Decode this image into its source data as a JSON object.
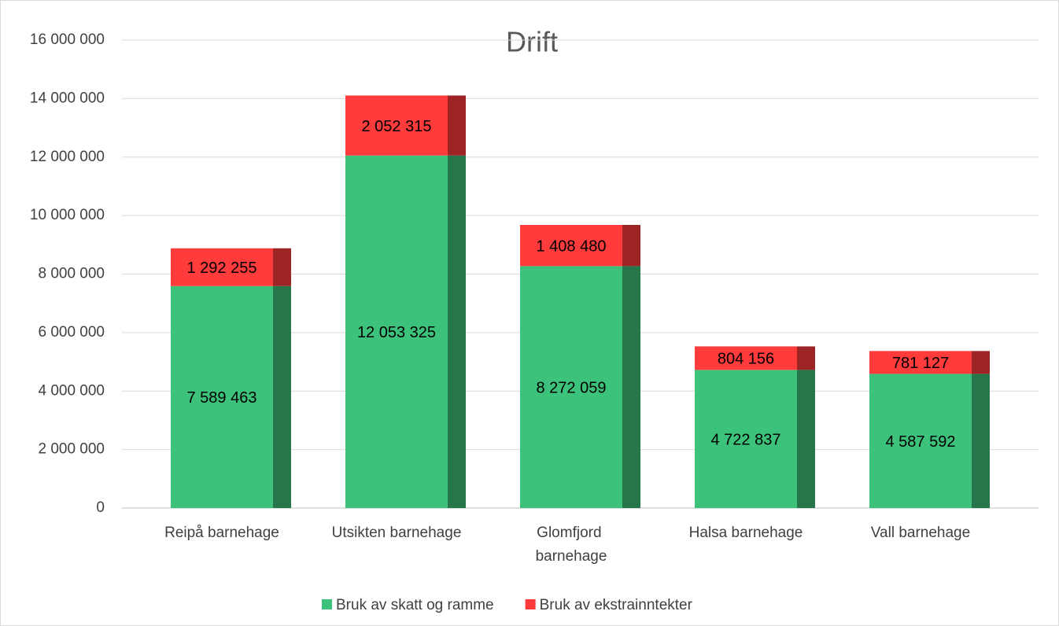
{
  "chart_data": {
    "type": "stacked_bar",
    "title": "Drift",
    "categories": [
      "Reipå barnehage",
      "Utsikten barnehage",
      "Glomfjord barnehage",
      "Halsa barnehage",
      "Vall barnehage"
    ],
    "series": [
      {
        "name": "Bruk av skatt og ramme",
        "color": "#3cc27a",
        "values": [
          7589463,
          12053325,
          8272059,
          4722837,
          4587592
        ],
        "value_labels": [
          "7 589 463",
          "12 053 325",
          "8 272 059",
          "4 722 837",
          "4 587 592"
        ]
      },
      {
        "name": "Bruk av ekstrainntekter",
        "color": "#ff3b3b",
        "values": [
          1292255,
          2052315,
          1408480,
          804156,
          781127
        ],
        "value_labels": [
          "1 292 255",
          "2 052 315",
          "1 408 480",
          "804 156",
          "781 127"
        ]
      }
    ],
    "ylim": [
      0,
      16000000
    ],
    "yticks": [
      0,
      {
        "value": 2000000,
        "label": "2 000 000"
      },
      {
        "value": 4000000,
        "label": "4 000 000"
      },
      {
        "value": 6000000,
        "label": "6 000 000"
      },
      {
        "value": 8000000,
        "label": "8 000 000"
      },
      {
        "value": 10000000,
        "label": "10 000 000"
      },
      {
        "value": 12000000,
        "label": "12 000 000"
      },
      {
        "value": 14000000,
        "label": "14 000 000"
      },
      {
        "value": 16000000,
        "label": "16 000 000"
      }
    ],
    "grid": true,
    "legend": "bottom"
  }
}
